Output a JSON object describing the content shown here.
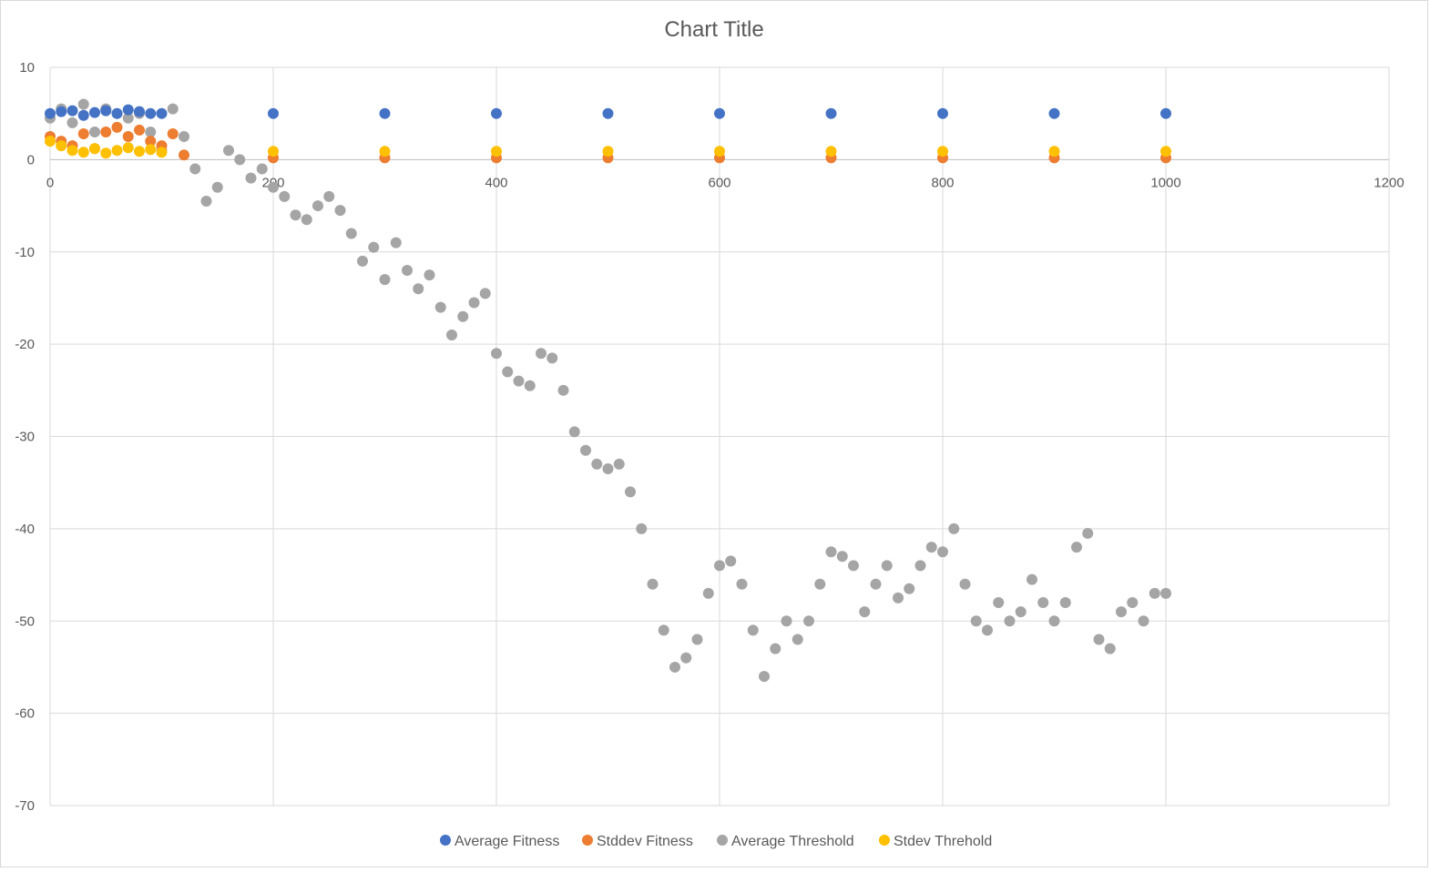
{
  "chart_data": {
    "type": "scatter",
    "title": "Chart Title",
    "xlim": [
      0,
      1200
    ],
    "ylim": [
      -70,
      10
    ],
    "x_ticks": [
      "0",
      "200",
      "400",
      "600",
      "800",
      "1000",
      "1200"
    ],
    "y_ticks": [
      "10",
      "0",
      "-10",
      "-20",
      "-30",
      "-40",
      "-50",
      "-60",
      "-70"
    ],
    "grid": true,
    "legend_position": "bottom",
    "series": [
      {
        "name": "Average Fitness",
        "color": "#4472C4",
        "x": [
          0,
          10,
          20,
          30,
          40,
          50,
          60,
          70,
          80,
          90,
          100,
          200,
          300,
          400,
          500,
          600,
          700,
          800,
          900,
          1000
        ],
        "y": [
          5.0,
          5.2,
          5.3,
          4.8,
          5.1,
          5.3,
          5.0,
          5.4,
          5.2,
          5.0,
          5.0,
          5.0,
          5.0,
          5.0,
          5.0,
          5.0,
          5.0,
          5.0,
          5.0,
          5.0
        ]
      },
      {
        "name": "Stddev Fitness",
        "color": "#ED7D31",
        "x": [
          0,
          10,
          20,
          30,
          40,
          50,
          60,
          70,
          80,
          90,
          100,
          110,
          120,
          200,
          300,
          400,
          500,
          600,
          700,
          800,
          900,
          1000
        ],
        "y": [
          2.5,
          2.0,
          1.5,
          2.8,
          1.2,
          3.0,
          3.5,
          2.5,
          3.2,
          2.0,
          1.5,
          2.8,
          0.5,
          0.2,
          0.2,
          0.2,
          0.2,
          0.2,
          0.2,
          0.2,
          0.2,
          0.2
        ]
      },
      {
        "name": "Average Threshold",
        "color": "#A5A5A5",
        "x": [
          0,
          10,
          20,
          30,
          40,
          50,
          60,
          70,
          80,
          90,
          100,
          110,
          120,
          130,
          140,
          150,
          160,
          170,
          180,
          190,
          200,
          210,
          220,
          230,
          240,
          250,
          260,
          270,
          280,
          290,
          300,
          310,
          320,
          330,
          340,
          350,
          360,
          370,
          380,
          390,
          400,
          410,
          420,
          430,
          440,
          450,
          460,
          470,
          480,
          490,
          500,
          510,
          520,
          530,
          540,
          550,
          560,
          570,
          580,
          590,
          600,
          610,
          620,
          630,
          640,
          650,
          660,
          670,
          680,
          690,
          700,
          710,
          720,
          730,
          740,
          750,
          760,
          770,
          780,
          790,
          800,
          810,
          820,
          830,
          840,
          850,
          860,
          870,
          880,
          890,
          900,
          910,
          920,
          930,
          940,
          950,
          960,
          970,
          980,
          990,
          1000
        ],
        "y": [
          4.5,
          5.5,
          4.0,
          6.0,
          3.0,
          5.5,
          5.0,
          4.5,
          5.0,
          3.0,
          1.0,
          5.5,
          2.5,
          -1.0,
          -4.5,
          -3.0,
          1.0,
          0.0,
          -2.0,
          -1.0,
          -3.0,
          -4.0,
          -6.0,
          -6.5,
          -5.0,
          -4.0,
          -5.5,
          -8.0,
          -11.0,
          -9.5,
          -13.0,
          -9.0,
          -12.0,
          -14.0,
          -12.5,
          -16.0,
          -19.0,
          -17.0,
          -15.5,
          -14.5,
          -21.0,
          -23.0,
          -24.0,
          -24.5,
          -21.0,
          -21.5,
          -25.0,
          -29.5,
          -31.5,
          -33.0,
          -33.5,
          -33.0,
          -36.0,
          -40.0,
          -46.0,
          -51.0,
          -55.0,
          -54.0,
          -52.0,
          -47.0,
          -44.0,
          -43.5,
          -46.0,
          -51.0,
          -56.0,
          -53.0,
          -50.0,
          -52.0,
          -50.0,
          -46.0,
          -42.5,
          -43.0,
          -44.0,
          -49.0,
          -46.0,
          -44.0,
          -47.5,
          -46.5,
          -44.0,
          -42.0,
          -42.5,
          -40.0,
          -46.0,
          -50.0,
          -51.0,
          -48.0,
          -50.0,
          -49.0,
          -45.5,
          -48.0,
          -50.0,
          -48.0,
          -42.0,
          -40.5,
          -52.0,
          -53.0,
          -49.0,
          -48.0,
          -50.0,
          -47.0,
          -47.0
        ]
      },
      {
        "name": "Stdev Threhold",
        "color": "#FFC000",
        "x": [
          0,
          10,
          20,
          30,
          40,
          50,
          60,
          70,
          80,
          90,
          100,
          200,
          300,
          400,
          500,
          600,
          700,
          800,
          900,
          1000
        ],
        "y": [
          2.0,
          1.5,
          1.0,
          0.8,
          1.2,
          0.7,
          1.0,
          1.3,
          0.9,
          1.1,
          0.8,
          0.9,
          0.9,
          0.9,
          0.9,
          0.9,
          0.9,
          0.9,
          0.9,
          0.9
        ]
      }
    ]
  }
}
